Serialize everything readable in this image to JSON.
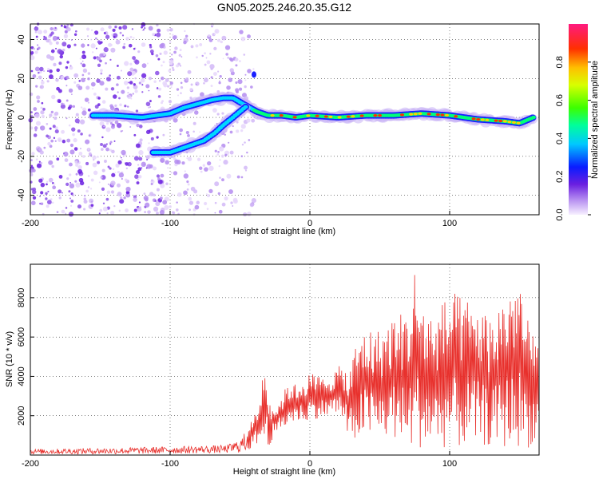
{
  "title": "GN05.2025.246.20.35.G12",
  "chart_data": [
    {
      "type": "heatmap",
      "title": "GN05.2025.246.20.35.G12",
      "xlabel": "Height of straight line (km)",
      "ylabel": "Frequency (Hz)",
      "xlim": [
        -200,
        164
      ],
      "ylim": [
        -50,
        48
      ],
      "xticks": [
        -200,
        -100,
        0,
        100
      ],
      "yticks": [
        -40,
        -20,
        0,
        20,
        40
      ],
      "grid": true,
      "colorbar": {
        "label": "Normalized spectral amplitude",
        "range": [
          0,
          1
        ],
        "ticks": [
          "0.0",
          "0.2",
          "0.4",
          "0.6",
          "0.8"
        ]
      },
      "traces": [
        {
          "name": "main trace",
          "points": [
            [
              -155,
              1
            ],
            [
              -140,
              1
            ],
            [
              -120,
              0
            ],
            [
              -110,
              1
            ],
            [
              -100,
              2
            ],
            [
              -90,
              5
            ],
            [
              -80,
              7
            ],
            [
              -70,
              9
            ],
            [
              -62,
              10
            ],
            [
              -55,
              10
            ],
            [
              -48,
              7
            ],
            [
              -43,
              5
            ],
            [
              -38,
              3
            ],
            [
              -30,
              1
            ],
            [
              -20,
              1
            ],
            [
              -10,
              0
            ],
            [
              0,
              1
            ],
            [
              20,
              0
            ],
            [
              40,
              1
            ],
            [
              60,
              1
            ],
            [
              80,
              2
            ],
            [
              100,
              1
            ],
            [
              120,
              -1
            ],
            [
              140,
              -2
            ],
            [
              150,
              -3
            ],
            [
              160,
              0
            ]
          ]
        },
        {
          "name": "lower branch",
          "points": [
            [
              -112,
              -18
            ],
            [
              -100,
              -18
            ],
            [
              -92,
              -16
            ],
            [
              -84,
              -14
            ],
            [
              -76,
              -12
            ],
            [
              -68,
              -8
            ],
            [
              -62,
              -4
            ],
            [
              -55,
              0
            ],
            [
              -50,
              3
            ],
            [
              -45,
              6
            ]
          ]
        }
      ]
    },
    {
      "type": "line",
      "xlabel": "Height of straight line (km)",
      "ylabel": "SNR (10 * v/v)",
      "xlim": [
        -200,
        164
      ],
      "ylim": [
        0,
        9700
      ],
      "xticks": [
        -200,
        -100,
        0,
        100
      ],
      "yticks": [
        2000,
        4000,
        6000,
        8000
      ],
      "grid": true,
      "color": "#e8302c",
      "envelope": {
        "x": [
          -200,
          -160,
          -120,
          -90,
          -60,
          -50,
          -45,
          -40,
          -35,
          -32,
          -30,
          -25,
          -20,
          -15,
          -10,
          -5,
          0,
          10,
          20,
          25,
          28,
          30,
          35,
          40,
          50,
          60,
          70,
          75,
          80,
          90,
          100,
          110,
          120,
          130,
          140,
          150,
          155,
          164
        ],
        "high": [
          300,
          350,
          400,
          450,
          500,
          800,
          1300,
          2000,
          3200,
          6000,
          3000,
          2500,
          3000,
          3800,
          3600,
          3900,
          4200,
          4000,
          4500,
          4600,
          4000,
          5000,
          6200,
          6500,
          6400,
          7200,
          7400,
          9600,
          7800,
          7200,
          8400,
          8000,
          7800,
          7000,
          8500,
          9300,
          7000,
          5800
        ],
        "low": [
          50,
          50,
          60,
          80,
          100,
          120,
          200,
          400,
          600,
          300,
          400,
          900,
          1300,
          1500,
          1700,
          1600,
          1800,
          1900,
          2000,
          1600,
          300,
          600,
          800,
          900,
          700,
          800,
          300,
          200,
          400,
          300,
          400,
          300,
          500,
          400,
          300,
          400,
          300,
          800
        ]
      }
    }
  ]
}
